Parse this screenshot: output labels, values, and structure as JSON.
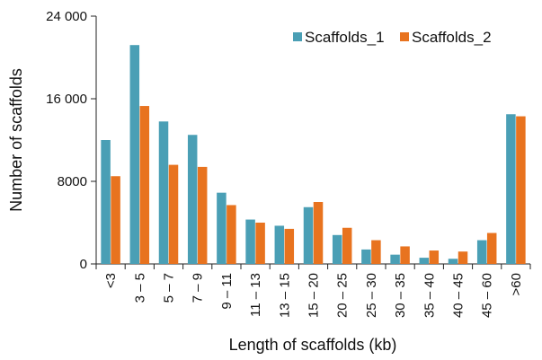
{
  "chart_data": {
    "type": "bar",
    "xlabel": "Length of scaffolds (kb)",
    "ylabel": "Number of scaffolds",
    "ylim": [
      0,
      24000
    ],
    "yticks": [
      0,
      8000,
      16000,
      24000
    ],
    "ytick_labels": [
      "0",
      "8000",
      "16 000",
      "24 000"
    ],
    "categories": [
      "<3",
      "3 – 5",
      "5 – 7",
      "7 – 9",
      "9 – 11",
      "11 – 13",
      "13 – 15",
      "15 – 20",
      "20 – 25",
      "25 – 30",
      "30 – 35",
      "35 – 40",
      "40 – 45",
      "45 – 60",
      ">60"
    ],
    "series": [
      {
        "name": "Scaffolds_1",
        "color": "#4a9fb5",
        "values": [
          12000,
          21200,
          13800,
          12500,
          6900,
          4300,
          3700,
          5500,
          2800,
          1400,
          900,
          600,
          500,
          2300,
          14500
        ]
      },
      {
        "name": "Scaffolds_2",
        "color": "#e8731f",
        "values": [
          8500,
          15300,
          9600,
          9400,
          5700,
          4000,
          3400,
          6000,
          3500,
          2300,
          1700,
          1300,
          1200,
          3000,
          14300
        ]
      }
    ],
    "legend_position": "top-right",
    "grid": false
  }
}
